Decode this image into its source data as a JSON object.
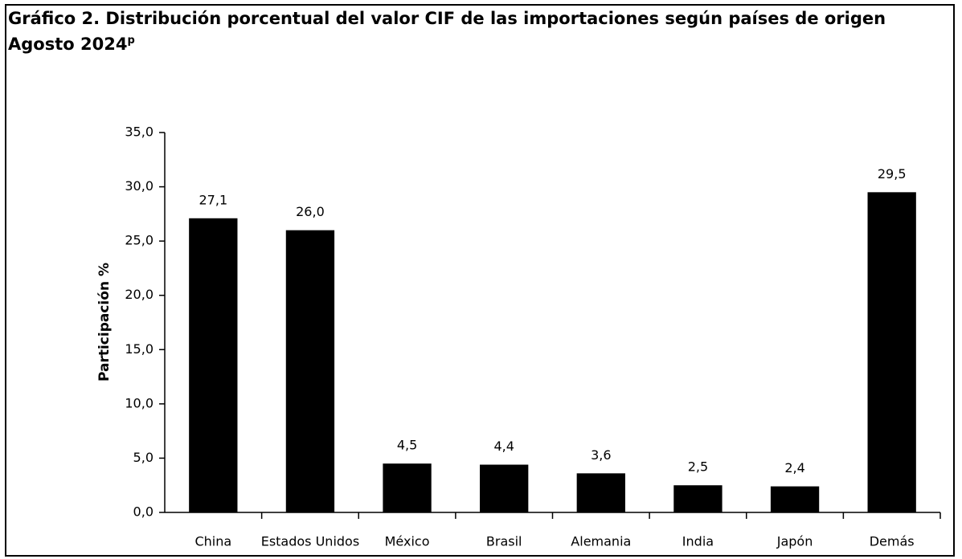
{
  "chart_data": {
    "type": "bar",
    "title": "Gráfico 2. Distribución porcentual del valor CIF de las importaciones según países de origen",
    "subtitle": "Agosto 2024",
    "subtitle_superscript": "p",
    "y_label": "Participación %",
    "categories": [
      "China",
      "Estados Unidos",
      "México",
      "Brasil",
      "Alemania",
      "India",
      "Japón",
      "Demás"
    ],
    "values": [
      27.1,
      26.0,
      4.5,
      4.4,
      3.6,
      2.5,
      2.4,
      29.5
    ],
    "value_labels": [
      "27,1",
      "26,0",
      "4,5",
      "4,4",
      "3,6",
      "2,5",
      "2,4",
      "29,5"
    ],
    "color": "#000000",
    "ylim": [
      0,
      35
    ],
    "yticks": [
      {
        "value": 0,
        "label": "0,0"
      },
      {
        "value": 5,
        "label": "5,0"
      },
      {
        "value": 10,
        "label": "10,0"
      },
      {
        "value": 15,
        "label": "15,0"
      },
      {
        "value": 20,
        "label": "20,0"
      },
      {
        "value": 25,
        "label": "25,0"
      },
      {
        "value": 30,
        "label": "30,0"
      },
      {
        "value": 35,
        "label": "35,0"
      }
    ],
    "grid": false
  }
}
